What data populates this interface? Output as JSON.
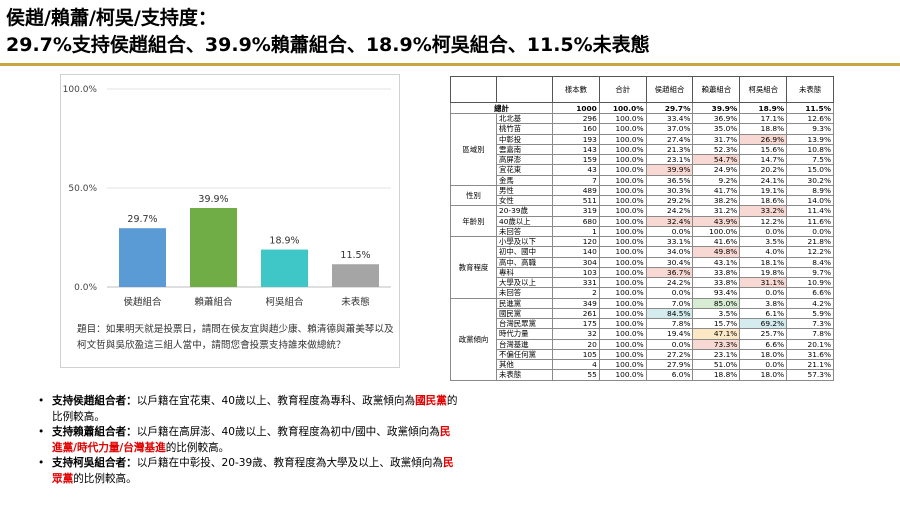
{
  "title": {
    "line1": "侯趙/賴蕭/柯吳/支持度：",
    "line2": "29.7%支持侯趙組合、39.9%賴蕭組合、18.9%柯吳組合、11.5%未表態"
  },
  "chart_data": {
    "type": "bar",
    "categories": [
      "侯趙組合",
      "賴蕭組合",
      "柯吳組合",
      "未表態"
    ],
    "values": [
      29.7,
      39.9,
      18.9,
      11.5
    ],
    "value_labels": [
      "29.7%",
      "39.9%",
      "18.9%",
      "11.5%"
    ],
    "colors": [
      "#5b9bd5",
      "#70ad47",
      "#3fc6c6",
      "#a5a5a5"
    ],
    "yticks": [
      "0.0%",
      "50.0%",
      "100.0%"
    ],
    "ytick_values": [
      0,
      50,
      100
    ],
    "ylim": [
      0,
      100
    ],
    "grid": true,
    "title": "",
    "xlabel": "",
    "ylabel": ""
  },
  "question": "題目：如果明天就是投票日，請問在侯友宜與趙少康、賴清德與蕭美琴以及柯文哲與吳欣盈這三組人當中，請問您會投票支持誰來做總統？",
  "notes": [
    {
      "bullet": "•",
      "head": "支持侯趙組合者：",
      "pre": "以戶籍在宜花東、40歲以上、教育程度為專科、政黨傾向為",
      "red": "國民黨",
      "post": "的比例較高。"
    },
    {
      "bullet": "•",
      "head": "支持賴蕭組合者：",
      "pre": "以戶籍在高屏澎、40歲以上、教育程度為初中/國中、政黨傾向為",
      "red": "民進黨/時代力量/台灣基進",
      "post": "的比例較高。"
    },
    {
      "bullet": "•",
      "head": "支持柯吳組合者：",
      "pre": "以戶籍在中彰投、20-39歲、教育程度為大學及以上、政黨傾向為",
      "red": "民眾黨",
      "post": "的比例較高。"
    }
  ],
  "table": {
    "headers": [
      "樣本數",
      "合計",
      "侯趙組合",
      "賴蕭組合",
      "柯吳組合",
      "未表態"
    ],
    "total": {
      "label": "總計",
      "values": [
        "1000",
        "100.0%",
        "29.7%",
        "39.9%",
        "18.9%",
        "11.5%"
      ]
    },
    "groups": [
      {
        "name": "區域別",
        "rows": [
          {
            "cat": "北北基",
            "values": [
              "296",
              "100.0%",
              "33.4%",
              "36.9%",
              "17.1%",
              "12.6%"
            ],
            "hl": [
              "",
              "",
              "",
              "",
              "",
              ""
            ]
          },
          {
            "cat": "桃竹苗",
            "values": [
              "160",
              "100.0%",
              "37.0%",
              "35.0%",
              "18.8%",
              "9.3%"
            ],
            "hl": [
              "",
              "",
              "",
              "",
              "",
              ""
            ]
          },
          {
            "cat": "中彰投",
            "values": [
              "193",
              "100.0%",
              "27.4%",
              "31.7%",
              "26.9%",
              "13.9%"
            ],
            "hl": [
              "",
              "",
              "",
              "",
              "red",
              ""
            ]
          },
          {
            "cat": "雲嘉南",
            "values": [
              "143",
              "100.0%",
              "21.3%",
              "52.3%",
              "15.6%",
              "10.8%"
            ],
            "hl": [
              "",
              "",
              "",
              "",
              "",
              ""
            ]
          },
          {
            "cat": "高屏澎",
            "values": [
              "159",
              "100.0%",
              "23.1%",
              "54.7%",
              "14.7%",
              "7.5%"
            ],
            "hl": [
              "",
              "",
              "",
              "red",
              "",
              ""
            ]
          },
          {
            "cat": "宜花東",
            "values": [
              "43",
              "100.0%",
              "39.9%",
              "24.9%",
              "20.2%",
              "15.0%"
            ],
            "hl": [
              "",
              "",
              "red",
              "",
              "",
              ""
            ]
          },
          {
            "cat": "金馬",
            "values": [
              "7",
              "100.0%",
              "36.5%",
              "9.2%",
              "24.1%",
              "30.2%"
            ],
            "hl": [
              "",
              "",
              "",
              "",
              "",
              ""
            ]
          }
        ]
      },
      {
        "name": "性別",
        "rows": [
          {
            "cat": "男性",
            "values": [
              "489",
              "100.0%",
              "30.3%",
              "41.7%",
              "19.1%",
              "8.9%"
            ],
            "hl": [
              "",
              "",
              "",
              "",
              "",
              ""
            ]
          },
          {
            "cat": "女性",
            "values": [
              "511",
              "100.0%",
              "29.2%",
              "38.2%",
              "18.6%",
              "14.0%"
            ],
            "hl": [
              "",
              "",
              "",
              "",
              "",
              ""
            ]
          }
        ]
      },
      {
        "name": "年齡別",
        "rows": [
          {
            "cat": "20-39歲",
            "values": [
              "319",
              "100.0%",
              "24.2%",
              "31.2%",
              "33.2%",
              "11.4%"
            ],
            "hl": [
              "",
              "",
              "",
              "",
              "red",
              ""
            ]
          },
          {
            "cat": "40歲以上",
            "values": [
              "680",
              "100.0%",
              "32.4%",
              "43.9%",
              "12.2%",
              "11.6%"
            ],
            "hl": [
              "",
              "",
              "red",
              "red",
              "",
              ""
            ]
          },
          {
            "cat": "未回答",
            "values": [
              "1",
              "100.0%",
              "0.0%",
              "100.0%",
              "0.0%",
              "0.0%"
            ],
            "hl": [
              "",
              "",
              "",
              "",
              "",
              ""
            ]
          }
        ]
      },
      {
        "name": "教育程度",
        "rows": [
          {
            "cat": "小學及以下",
            "values": [
              "120",
              "100.0%",
              "33.1%",
              "41.6%",
              "3.5%",
              "21.8%"
            ],
            "hl": [
              "",
              "",
              "",
              "",
              "",
              ""
            ]
          },
          {
            "cat": "初中、國中",
            "values": [
              "140",
              "100.0%",
              "34.0%",
              "49.8%",
              "4.0%",
              "12.2%"
            ],
            "hl": [
              "",
              "",
              "",
              "red",
              "",
              ""
            ]
          },
          {
            "cat": "高中、高職",
            "values": [
              "304",
              "100.0%",
              "30.4%",
              "43.1%",
              "18.1%",
              "8.4%"
            ],
            "hl": [
              "",
              "",
              "",
              "",
              "",
              ""
            ]
          },
          {
            "cat": "專科",
            "values": [
              "103",
              "100.0%",
              "36.7%",
              "33.8%",
              "19.8%",
              "9.7%"
            ],
            "hl": [
              "",
              "",
              "red",
              "",
              "",
              ""
            ]
          },
          {
            "cat": "大學及以上",
            "values": [
              "331",
              "100.0%",
              "24.2%",
              "33.8%",
              "31.1%",
              "10.9%"
            ],
            "hl": [
              "",
              "",
              "",
              "",
              "red",
              ""
            ]
          },
          {
            "cat": "未回答",
            "values": [
              "2",
              "100.0%",
              "0.0%",
              "93.4%",
              "0.0%",
              "6.6%"
            ],
            "hl": [
              "",
              "",
              "",
              "",
              "",
              ""
            ]
          }
        ]
      },
      {
        "name": "政黨傾向",
        "rows": [
          {
            "cat": "民進黨",
            "values": [
              "349",
              "100.0%",
              "7.0%",
              "85.0%",
              "3.8%",
              "4.2%"
            ],
            "hl": [
              "",
              "",
              "",
              "green",
              "",
              ""
            ]
          },
          {
            "cat": "國民黨",
            "values": [
              "261",
              "100.0%",
              "84.5%",
              "3.5%",
              "6.1%",
              "5.9%"
            ],
            "hl": [
              "",
              "",
              "teal",
              "",
              "",
              ""
            ]
          },
          {
            "cat": "台灣民眾黨",
            "values": [
              "175",
              "100.0%",
              "7.8%",
              "15.7%",
              "69.2%",
              "7.3%"
            ],
            "hl": [
              "",
              "",
              "",
              "",
              "teal",
              ""
            ]
          },
          {
            "cat": "時代力量",
            "values": [
              "32",
              "100.0%",
              "19.4%",
              "47.1%",
              "25.7%",
              "7.8%"
            ],
            "hl": [
              "",
              "",
              "",
              "yellow",
              "",
              ""
            ]
          },
          {
            "cat": "台灣基進",
            "values": [
              "20",
              "100.0%",
              "0.0%",
              "73.3%",
              "6.6%",
              "20.1%"
            ],
            "hl": [
              "",
              "",
              "",
              "red",
              "",
              ""
            ]
          },
          {
            "cat": "不偏任何黨",
            "values": [
              "105",
              "100.0%",
              "27.2%",
              "23.1%",
              "18.0%",
              "31.6%"
            ],
            "hl": [
              "",
              "",
              "",
              "",
              "",
              ""
            ]
          },
          {
            "cat": "其他",
            "values": [
              "4",
              "100.0%",
              "27.9%",
              "51.0%",
              "0.0%",
              "21.1%"
            ],
            "hl": [
              "",
              "",
              "",
              "",
              "",
              ""
            ]
          },
          {
            "cat": "未表態",
            "values": [
              "55",
              "100.0%",
              "6.0%",
              "18.8%",
              "18.0%",
              "57.3%"
            ],
            "hl": [
              "",
              "",
              "",
              "",
              "",
              ""
            ]
          }
        ]
      }
    ]
  }
}
